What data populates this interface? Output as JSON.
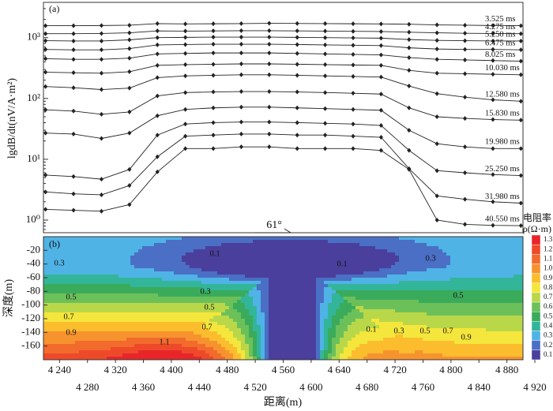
{
  "chart_data": [
    {
      "type": "line",
      "panel_label": "(a)",
      "ylabel": "lgdB/dt(nV/A·m²)",
      "log_y": true,
      "xlim": [
        4217,
        4903
      ],
      "ylim": [
        0.62,
        3800
      ],
      "yticks": [
        {
          "value": 1,
          "label": "10⁰"
        },
        {
          "value": 10,
          "label": "10¹"
        },
        {
          "value": 100,
          "label": "10²"
        },
        {
          "value": 1000,
          "label": "10³"
        }
      ],
      "x": [
        4220,
        4260,
        4300,
        4340,
        4380,
        4420,
        4460,
        4500,
        4540,
        4580,
        4620,
        4660,
        4700,
        4740,
        4780,
        4820,
        4860,
        4900
      ],
      "series": [
        {
          "name": "3.525 ms",
          "color": "#222",
          "values": [
            1570,
            1570,
            1580,
            1600,
            1700,
            1680,
            1690,
            1700,
            1720,
            1710,
            1700,
            1690,
            1680,
            1660,
            1620,
            1600,
            1580,
            1570
          ]
        },
        {
          "name": "4.275 ms",
          "color": "#222",
          "values": [
            1160,
            1160,
            1170,
            1200,
            1290,
            1280,
            1290,
            1300,
            1300,
            1290,
            1280,
            1270,
            1260,
            1230,
            1200,
            1180,
            1170,
            1160
          ]
        },
        {
          "name": "5.250 ms",
          "color": "#222",
          "values": [
            890,
            880,
            880,
            920,
            1000,
            1010,
            1020,
            1020,
            1020,
            1010,
            1000,
            990,
            980,
            930,
            900,
            890,
            880,
            880
          ]
        },
        {
          "name": "6.475 ms",
          "color": "#222",
          "values": [
            640,
            630,
            630,
            660,
            760,
            770,
            780,
            780,
            780,
            770,
            760,
            750,
            740,
            680,
            650,
            640,
            640,
            630
          ]
        },
        {
          "name": "8.025 ms",
          "color": "#222",
          "values": [
            450,
            440,
            440,
            460,
            540,
            550,
            560,
            560,
            560,
            550,
            540,
            530,
            520,
            470,
            440,
            430,
            420,
            410
          ]
        },
        {
          "name": "10.030 ms",
          "color": "#222",
          "values": [
            270,
            265,
            260,
            275,
            350,
            360,
            365,
            370,
            370,
            365,
            360,
            355,
            350,
            290,
            260,
            255,
            250,
            245
          ]
        },
        {
          "name": "12.580 ms",
          "color": "#222",
          "values": [
            157,
            150,
            140,
            148,
            220,
            235,
            240,
            245,
            245,
            240,
            235,
            230,
            225,
            160,
            120,
            105,
            95,
            90
          ]
        },
        {
          "name": "15.830 ms",
          "color": "#222",
          "values": [
            65,
            62,
            55,
            60,
            110,
            125,
            128,
            130,
            130,
            128,
            125,
            122,
            118,
            70,
            50,
            47,
            45,
            44
          ]
        },
        {
          "name": "19.980 ms",
          "color": "#222",
          "values": [
            27,
            26,
            22,
            27,
            52,
            66,
            70,
            72,
            72,
            70,
            68,
            66,
            64,
            30,
            18,
            16,
            15,
            15
          ]
        },
        {
          "name": "25.250 ms",
          "color": "#222",
          "values": [
            5.5,
            5.2,
            4.7,
            6.8,
            25,
            38,
            40,
            41,
            41,
            40,
            39,
            38,
            36,
            14,
            6.5,
            6,
            5.6,
            5.4
          ]
        },
        {
          "name": "31.980 ms",
          "color": "#222",
          "values": [
            2.9,
            2.7,
            2.6,
            3.7,
            11,
            24,
            25,
            26,
            26,
            25,
            25,
            24,
            23,
            7,
            2.5,
            2.2,
            2,
            1.9
          ]
        },
        {
          "name": "40.550 ms",
          "color": "#222",
          "values": [
            1.5,
            1.45,
            1.4,
            1.8,
            6.2,
            15,
            15,
            16,
            16,
            15,
            15,
            15,
            14,
            6.8,
            1,
            0.85,
            0.82,
            0.81
          ]
        }
      ]
    },
    {
      "type": "contour",
      "panel_label": "(b)",
      "xlabel": "距离(m)",
      "ylabel": "深度(m)",
      "dip_label": "61°",
      "xlim": [
        4217,
        4903
      ],
      "ylim": [
        -180,
        0
      ],
      "yticks": [
        -20,
        -40,
        -60,
        -80,
        -100,
        -120,
        -140,
        -160
      ],
      "xticks": [
        {
          "value": 4240,
          "label": "4 240"
        },
        {
          "value": 4280,
          "label": "4 280"
        },
        {
          "value": 4320,
          "label": "4 320"
        },
        {
          "value": 4360,
          "label": "4 360"
        },
        {
          "value": 4400,
          "label": "4 400"
        },
        {
          "value": 4440,
          "label": "4 440"
        },
        {
          "value": 4480,
          "label": "4 480"
        },
        {
          "value": 4520,
          "label": "4 520"
        },
        {
          "value": 4560,
          "label": "4 560"
        },
        {
          "value": 4600,
          "label": "4 600"
        },
        {
          "value": 4640,
          "label": "4 640"
        },
        {
          "value": 4680,
          "label": "4 680"
        },
        {
          "value": 4720,
          "label": "4 720"
        },
        {
          "value": 4760,
          "label": "4 760"
        },
        {
          "value": 4800,
          "label": "4 800"
        },
        {
          "value": 4840,
          "label": "4 840"
        },
        {
          "value": 4880,
          "label": "4 880"
        },
        {
          "value": 4920,
          "label": "4 920"
        }
      ],
      "contour_labels": [
        0.3,
        0.3,
        0.5,
        0.5,
        0.7,
        0.9,
        1.1,
        0.9,
        0.1,
        0.1,
        0.1,
        0.3,
        0.5,
        0.7,
        0.3,
        0.5,
        0.7
      ],
      "colorbar": {
        "title": "电阻率",
        "unit": "ρ(Ω·m)",
        "ticks": [
          1.3,
          1.2,
          1.1,
          {
            "value": 1,
            "label": "1.0"
          },
          0.9,
          0.8,
          0.7,
          0.6,
          0.5,
          0.4,
          0.3,
          0.2,
          0.1
        ],
        "colors": [
          "#e8262a",
          "#ee4a2a",
          "#f26b2d",
          "#f7932e",
          "#fbbd2e",
          "#f4e63c",
          "#b9d849",
          "#6cc05a",
          "#3aab5b",
          "#33b59a",
          "#4fb3e6",
          "#4a6fc4",
          "#4a3f9c"
        ]
      }
    }
  ]
}
